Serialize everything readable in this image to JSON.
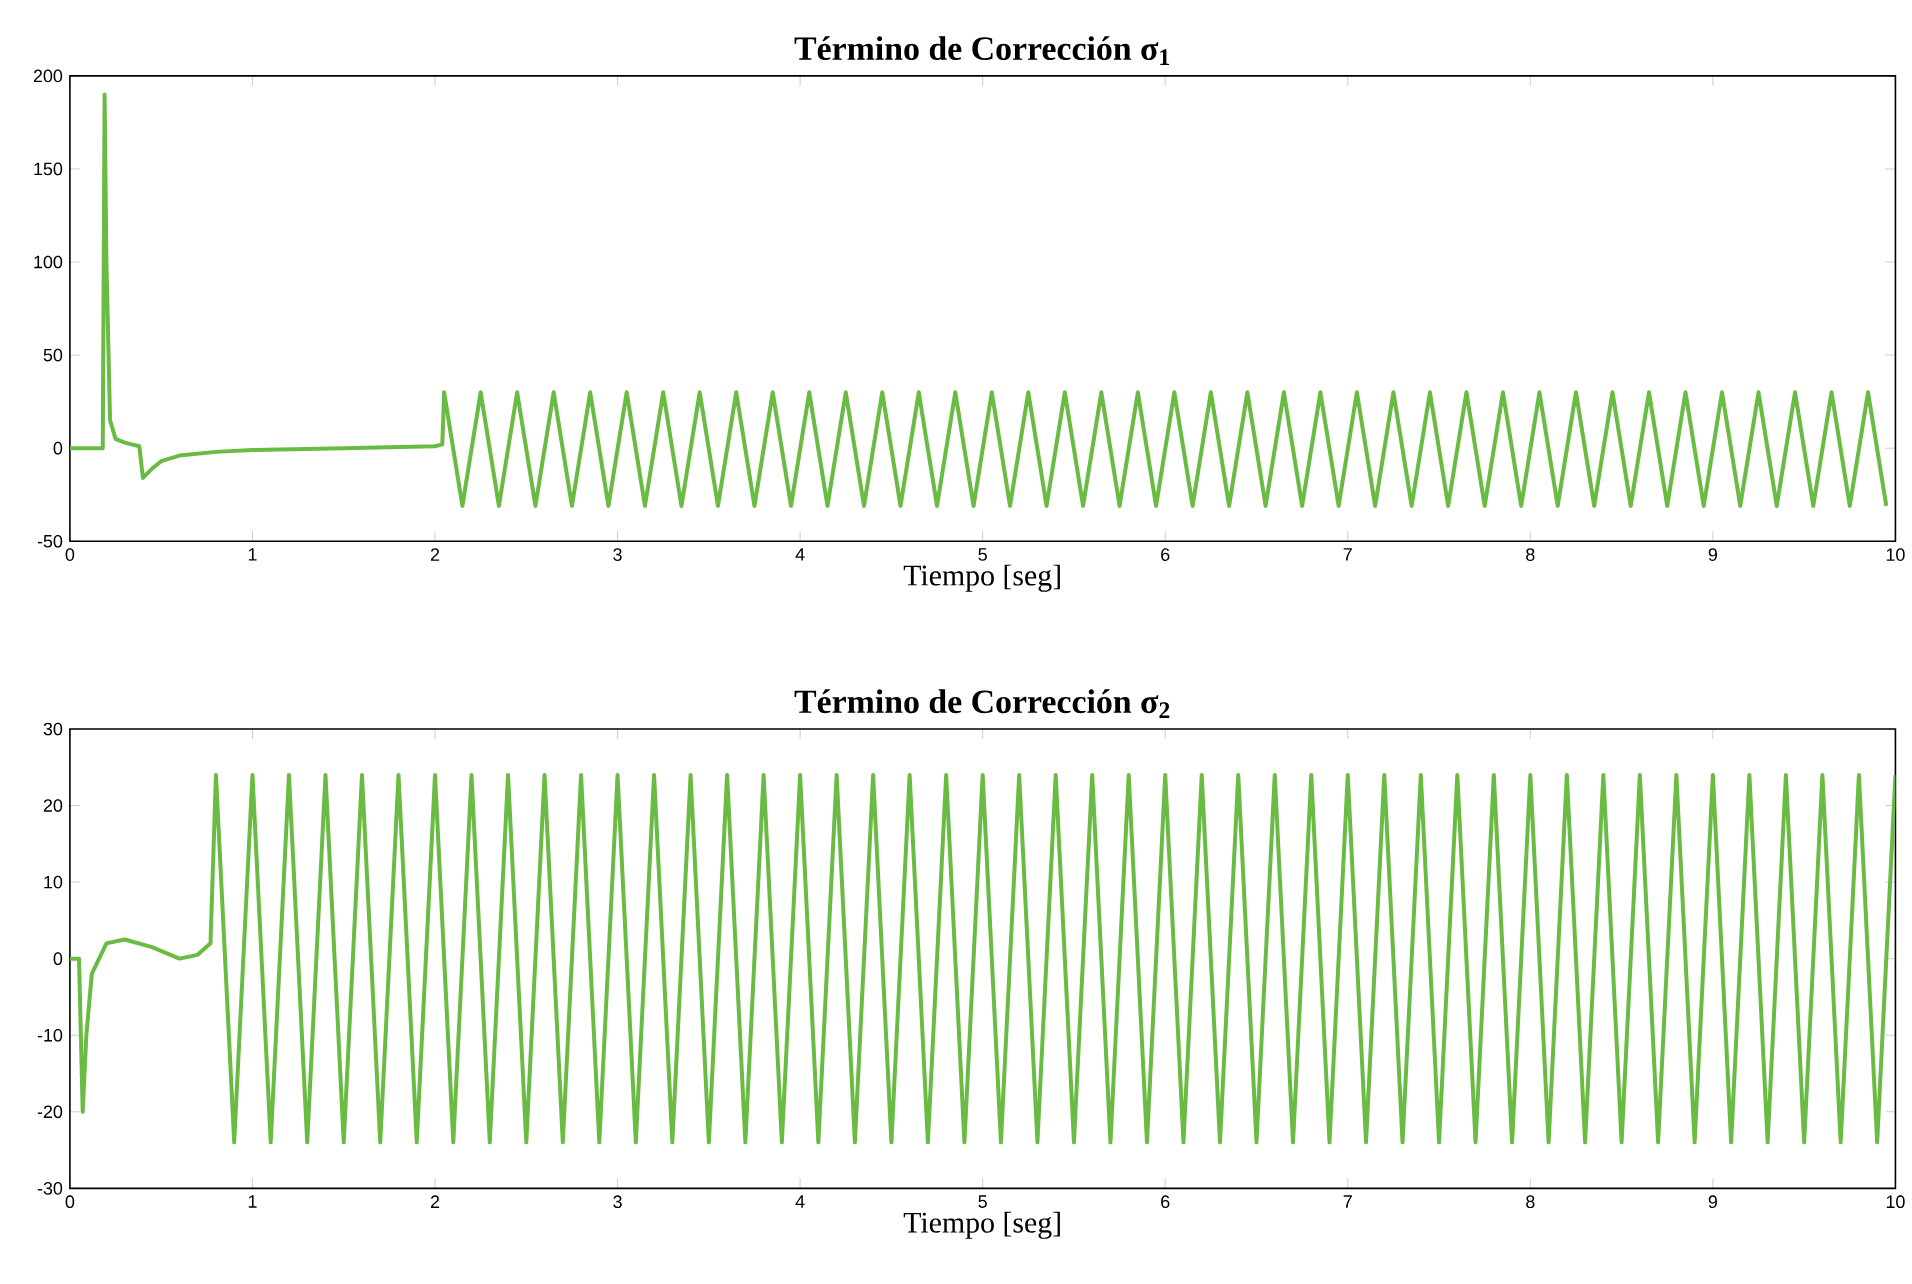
{
  "chart_data": [
    {
      "type": "line",
      "title": "**Término de Corrección σ$_{1}$**",
      "xlabel": "Tiempo [seg]",
      "xlim": [
        0,
        10
      ],
      "ylim": [
        -50,
        200
      ],
      "xticks": [
        0,
        1,
        2,
        3,
        4,
        5,
        6,
        7,
        8,
        9,
        10
      ],
      "yticks": [
        -50,
        0,
        50,
        100,
        150,
        200
      ],
      "grid": false,
      "series": [
        {
          "color": "#6abb44",
          "x": [
            0,
            0.18,
            0.19,
            0.2,
            0.22,
            0.25,
            0.3,
            0.38,
            0.4,
            0.45,
            0.5,
            0.6,
            0.8,
            1.0,
            1.5,
            2.0,
            2.04,
            2.05,
            2.15,
            2.25,
            2.35,
            2.45,
            2.55,
            2.65,
            2.75,
            2.85,
            2.95,
            3.05,
            3.15,
            3.25,
            3.35,
            3.45,
            3.55,
            3.65,
            3.75,
            3.85,
            3.95,
            4.05,
            4.15,
            4.25,
            4.35,
            4.45,
            4.55,
            4.65,
            4.75,
            4.85,
            4.95,
            5.05,
            5.15,
            5.25,
            5.35,
            5.45,
            5.55,
            5.65,
            5.75,
            5.85,
            5.95,
            6.05,
            6.15,
            6.25,
            6.35,
            6.45,
            6.55,
            6.65,
            6.75,
            6.85,
            6.95,
            7.05,
            7.15,
            7.25,
            7.35,
            7.45,
            7.55,
            7.65,
            7.75,
            7.85,
            7.95,
            8.05,
            8.15,
            8.25,
            8.35,
            8.45,
            8.55,
            8.65,
            8.75,
            8.85,
            8.95,
            9.05,
            9.15,
            9.25,
            9.35,
            9.45,
            9.55,
            9.65,
            9.75,
            9.85,
            9.95
          ],
          "values": [
            0,
            0,
            190,
            100,
            15,
            5,
            3,
            1,
            -16,
            -11,
            -7,
            -4,
            -2,
            -1,
            0,
            1,
            2,
            30,
            -31,
            30,
            -31,
            30,
            -31,
            30,
            -31,
            30,
            -31,
            30,
            -31,
            30,
            -31,
            30,
            -31,
            30,
            -31,
            30,
            -31,
            30,
            -31,
            30,
            -31,
            30,
            -31,
            30,
            -31,
            30,
            -31,
            30,
            -31,
            30,
            -31,
            30,
            -31,
            30,
            -31,
            30,
            -31,
            30,
            -31,
            30,
            -31,
            30,
            -31,
            30,
            -31,
            30,
            -31,
            30,
            -31,
            30,
            -31,
            30,
            -31,
            30,
            -31,
            30,
            -31,
            30,
            -31,
            30,
            -31,
            30,
            -31,
            30,
            -31,
            30,
            -31,
            30,
            -31,
            30,
            -31,
            30,
            -31,
            30,
            -31,
            30,
            -31
          ]
        }
      ]
    },
    {
      "type": "line",
      "title": "**Término de Corrección σ$_{2}$**",
      "xlabel": "Tiempo [seg]",
      "xlim": [
        0,
        10
      ],
      "ylim": [
        -30,
        30
      ],
      "xticks": [
        0,
        1,
        2,
        3,
        4,
        5,
        6,
        7,
        8,
        9,
        10
      ],
      "yticks": [
        -30,
        -20,
        -10,
        0,
        10,
        20,
        30
      ],
      "grid": false,
      "series": [
        {
          "color": "#6abb44",
          "x": [
            0,
            0.05,
            0.07,
            0.09,
            0.12,
            0.2,
            0.3,
            0.45,
            0.6,
            0.7,
            0.77,
            0.8,
            0.9,
            1.0,
            1.1,
            1.2,
            1.3,
            1.4,
            1.5,
            1.6,
            1.7,
            1.8,
            1.9,
            2.0,
            2.1,
            2.2,
            2.3,
            2.4,
            2.5,
            2.6,
            2.7,
            2.8,
            2.9,
            3.0,
            3.1,
            3.2,
            3.3,
            3.4,
            3.5,
            3.6,
            3.7,
            3.8,
            3.9,
            4.0,
            4.1,
            4.2,
            4.3,
            4.4,
            4.5,
            4.6,
            4.7,
            4.8,
            4.9,
            5.0,
            5.1,
            5.2,
            5.3,
            5.4,
            5.5,
            5.6,
            5.7,
            5.8,
            5.9,
            6.0,
            6.1,
            6.2,
            6.3,
            6.4,
            6.5,
            6.6,
            6.7,
            6.8,
            6.9,
            7.0,
            7.1,
            7.2,
            7.3,
            7.4,
            7.5,
            7.6,
            7.7,
            7.8,
            7.9,
            8.0,
            8.1,
            8.2,
            8.3,
            8.4,
            8.5,
            8.6,
            8.7,
            8.8,
            8.9,
            9.0,
            9.1,
            9.2,
            9.3,
            9.4,
            9.5,
            9.6,
            9.7,
            9.8,
            9.9,
            10.0
          ],
          "values": [
            0,
            0,
            -20,
            -10,
            -2,
            2,
            2.5,
            1.5,
            0,
            0.5,
            2,
            24,
            -24,
            24,
            -24,
            24,
            -24,
            24,
            -24,
            24,
            -24,
            24,
            -24,
            24,
            -24,
            24,
            -24,
            24,
            -24,
            24,
            -24,
            24,
            -24,
            24,
            -24,
            24,
            -24,
            24,
            -24,
            24,
            -24,
            24,
            -24,
            24,
            -24,
            24,
            -24,
            24,
            -24,
            24,
            -24,
            24,
            -24,
            24,
            -24,
            24,
            -24,
            24,
            -24,
            24,
            -24,
            24,
            -24,
            24,
            -24,
            24,
            -24,
            24,
            -24,
            24,
            -24,
            24,
            -24,
            24,
            -24,
            24,
            -24,
            24,
            -24,
            24,
            -24,
            24,
            -24,
            24,
            -24,
            24,
            -24,
            24,
            -24,
            24,
            -24,
            24,
            -24,
            24,
            -24,
            24,
            -24,
            24,
            -24,
            24,
            -24,
            24,
            -24,
            24
          ]
        }
      ]
    }
  ]
}
